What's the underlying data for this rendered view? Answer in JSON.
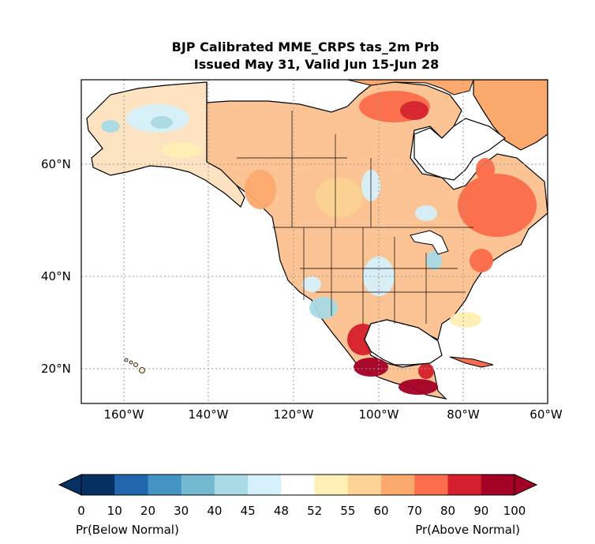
{
  "title": {
    "line1": "BJP Calibrated MME_CRPS tas_2m Prb",
    "line2": "Issued May 31, Valid Jun 15-Jun 28"
  },
  "map": {
    "lon_ticks": [
      "160°W",
      "140°W",
      "120°W",
      "100°W",
      "80°W",
      "60°W"
    ],
    "lat_ticks": [
      "60°N",
      "40°N",
      "20°N"
    ],
    "lon_range": [
      -170,
      -60
    ],
    "lat_range": [
      13,
      75
    ],
    "grid": "dotted"
  },
  "colorbar": {
    "ticks": [
      "0",
      "10",
      "20",
      "30",
      "40",
      "45",
      "48",
      "52",
      "55",
      "60",
      "70",
      "80",
      "90",
      "100"
    ],
    "colors": [
      "#053061",
      "#2166ac",
      "#4393c3",
      "#74b9d2",
      "#a8dbe6",
      "#d7f1fb",
      "#ffffff",
      "#fff0b5",
      "#fdd393",
      "#fca96e",
      "#fb6d4b",
      "#d61f2c",
      "#a50026"
    ],
    "extend": "both",
    "left_label": "Pr(Below Normal)",
    "right_label": "Pr(Above Normal)"
  }
}
